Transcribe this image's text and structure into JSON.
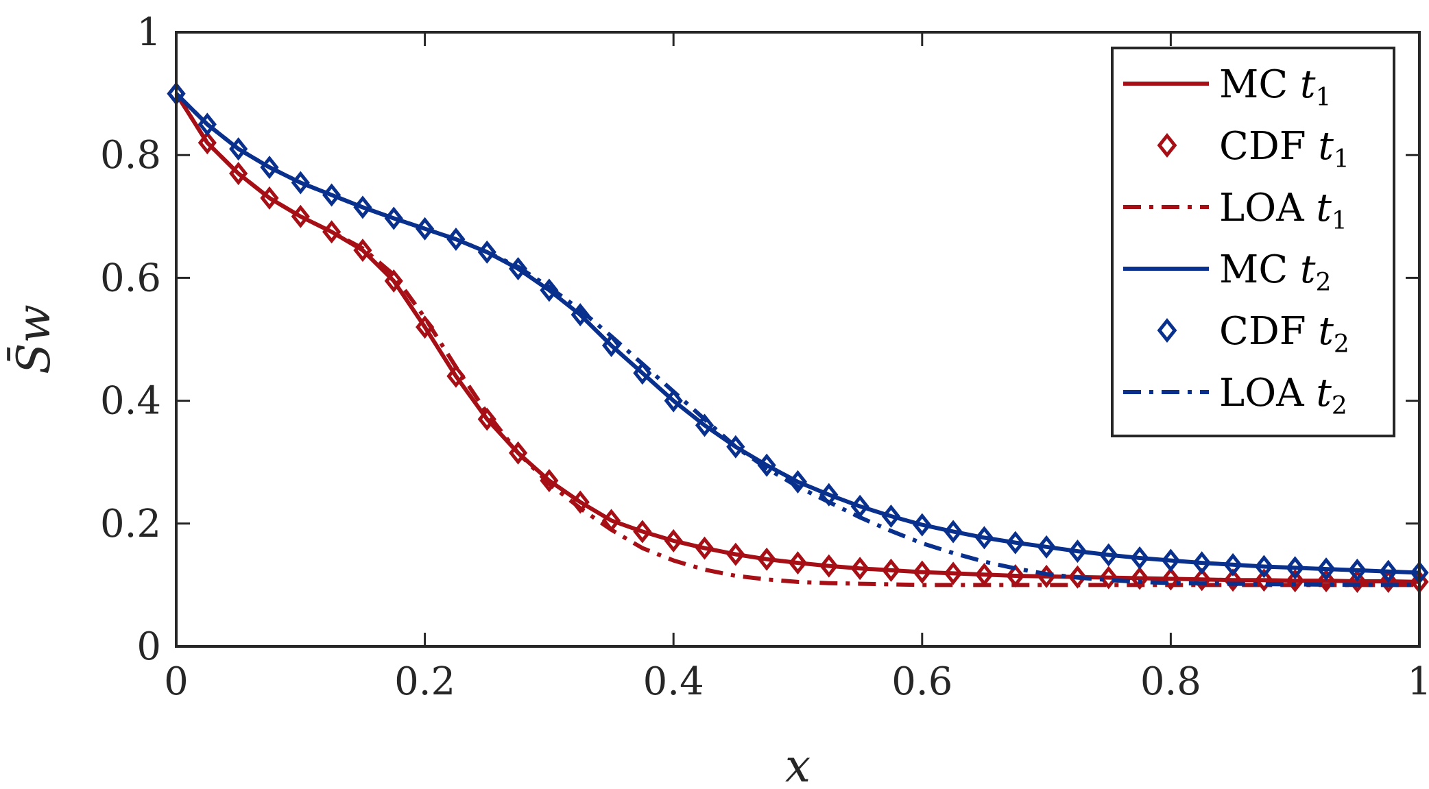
{
  "chart_data": {
    "type": "line",
    "title": "",
    "xlabel": "x",
    "ylabel": "S̄w",
    "xlim": [
      0,
      1
    ],
    "ylim": [
      0,
      1
    ],
    "xticks": [
      0,
      0.2,
      0.4,
      0.6,
      0.8,
      1
    ],
    "yticks": [
      0,
      0.2,
      0.4,
      0.6,
      0.8,
      1
    ],
    "xtick_labels": [
      "0",
      "0.2",
      "0.4",
      "0.6",
      "0.8",
      "1"
    ],
    "ytick_labels": [
      "0",
      "0.2",
      "0.4",
      "0.6",
      "0.8",
      "1"
    ],
    "grid": false,
    "legend_position": "top-right",
    "colors": {
      "red": "#a50f15",
      "blue": "#08308c",
      "axis": "#262626"
    },
    "series": [
      {
        "name": "MC t1",
        "label_main": "MC",
        "label_var": "t",
        "label_sub": "1",
        "color": "#a50f15",
        "style": "solid",
        "marker": "none",
        "x": [
          0,
          0.025,
          0.05,
          0.075,
          0.1,
          0.125,
          0.15,
          0.175,
          0.2,
          0.225,
          0.25,
          0.275,
          0.3,
          0.325,
          0.35,
          0.375,
          0.4,
          0.425,
          0.45,
          0.475,
          0.5,
          0.525,
          0.55,
          0.575,
          0.6,
          0.625,
          0.65,
          0.675,
          0.7,
          0.725,
          0.75,
          0.775,
          0.8,
          0.825,
          0.85,
          0.875,
          0.9,
          0.925,
          0.95,
          0.975,
          1
        ],
        "y": [
          0.9,
          0.82,
          0.77,
          0.73,
          0.7,
          0.675,
          0.645,
          0.595,
          0.52,
          0.44,
          0.37,
          0.315,
          0.27,
          0.235,
          0.205,
          0.187,
          0.172,
          0.16,
          0.15,
          0.142,
          0.136,
          0.131,
          0.127,
          0.124,
          0.121,
          0.119,
          0.117,
          0.115,
          0.114,
          0.113,
          0.112,
          0.111,
          0.11,
          0.109,
          0.108,
          0.108,
          0.107,
          0.107,
          0.106,
          0.106,
          0.105
        ]
      },
      {
        "name": "CDF t1",
        "label_main": "CDF",
        "label_var": "t",
        "label_sub": "1",
        "color": "#a50f15",
        "style": "none",
        "marker": "diamond",
        "x": [
          0,
          0.025,
          0.05,
          0.075,
          0.1,
          0.125,
          0.15,
          0.175,
          0.2,
          0.225,
          0.25,
          0.275,
          0.3,
          0.325,
          0.35,
          0.375,
          0.4,
          0.425,
          0.45,
          0.475,
          0.5,
          0.525,
          0.55,
          0.575,
          0.6,
          0.625,
          0.65,
          0.675,
          0.7,
          0.725,
          0.75,
          0.775,
          0.8,
          0.825,
          0.85,
          0.875,
          0.9,
          0.925,
          0.95,
          0.975,
          1
        ],
        "y": [
          0.9,
          0.82,
          0.77,
          0.73,
          0.7,
          0.675,
          0.645,
          0.595,
          0.52,
          0.44,
          0.37,
          0.315,
          0.27,
          0.235,
          0.205,
          0.187,
          0.172,
          0.16,
          0.15,
          0.142,
          0.136,
          0.131,
          0.127,
          0.124,
          0.121,
          0.119,
          0.117,
          0.115,
          0.114,
          0.113,
          0.112,
          0.111,
          0.11,
          0.109,
          0.108,
          0.108,
          0.107,
          0.107,
          0.106,
          0.106,
          0.105
        ]
      },
      {
        "name": "LOA t1",
        "label_main": "LOA",
        "label_var": "t",
        "label_sub": "1",
        "color": "#a50f15",
        "style": "dashdot",
        "marker": "none",
        "x": [
          0,
          0.025,
          0.05,
          0.075,
          0.1,
          0.125,
          0.15,
          0.175,
          0.2,
          0.225,
          0.25,
          0.275,
          0.3,
          0.325,
          0.35,
          0.375,
          0.4,
          0.425,
          0.45,
          0.475,
          0.5,
          0.525,
          0.55,
          0.575,
          0.6,
          0.625,
          0.65,
          0.675,
          0.7,
          0.75,
          0.8,
          0.85,
          0.9,
          0.95,
          1
        ],
        "y": [
          0.9,
          0.82,
          0.77,
          0.73,
          0.7,
          0.675,
          0.648,
          0.605,
          0.535,
          0.455,
          0.38,
          0.315,
          0.265,
          0.225,
          0.19,
          0.16,
          0.14,
          0.125,
          0.115,
          0.109,
          0.105,
          0.103,
          0.102,
          0.101,
          0.1,
          0.1,
          0.1,
          0.1,
          0.1,
          0.1,
          0.1,
          0.1,
          0.1,
          0.1,
          0.1
        ]
      },
      {
        "name": "MC t2",
        "label_main": "MC",
        "label_var": "t",
        "label_sub": "2",
        "color": "#08308c",
        "style": "solid",
        "marker": "none",
        "x": [
          0,
          0.025,
          0.05,
          0.075,
          0.1,
          0.125,
          0.15,
          0.175,
          0.2,
          0.225,
          0.25,
          0.275,
          0.3,
          0.325,
          0.35,
          0.375,
          0.4,
          0.425,
          0.45,
          0.475,
          0.5,
          0.525,
          0.55,
          0.575,
          0.6,
          0.625,
          0.65,
          0.675,
          0.7,
          0.725,
          0.75,
          0.775,
          0.8,
          0.825,
          0.85,
          0.875,
          0.9,
          0.925,
          0.95,
          0.975,
          1
        ],
        "y": [
          0.9,
          0.85,
          0.81,
          0.78,
          0.755,
          0.735,
          0.715,
          0.697,
          0.68,
          0.663,
          0.642,
          0.615,
          0.58,
          0.54,
          0.49,
          0.445,
          0.4,
          0.36,
          0.325,
          0.295,
          0.268,
          0.247,
          0.228,
          0.212,
          0.198,
          0.187,
          0.177,
          0.169,
          0.162,
          0.155,
          0.149,
          0.144,
          0.14,
          0.136,
          0.133,
          0.13,
          0.128,
          0.126,
          0.124,
          0.122,
          0.12
        ]
      },
      {
        "name": "CDF t2",
        "label_main": "CDF",
        "label_var": "t",
        "label_sub": "2",
        "color": "#08308c",
        "style": "none",
        "marker": "diamond",
        "x": [
          0,
          0.025,
          0.05,
          0.075,
          0.1,
          0.125,
          0.15,
          0.175,
          0.2,
          0.225,
          0.25,
          0.275,
          0.3,
          0.325,
          0.35,
          0.375,
          0.4,
          0.425,
          0.45,
          0.475,
          0.5,
          0.525,
          0.55,
          0.575,
          0.6,
          0.625,
          0.65,
          0.675,
          0.7,
          0.725,
          0.75,
          0.775,
          0.8,
          0.825,
          0.85,
          0.875,
          0.9,
          0.925,
          0.95,
          0.975,
          1
        ],
        "y": [
          0.9,
          0.85,
          0.81,
          0.78,
          0.755,
          0.735,
          0.715,
          0.697,
          0.68,
          0.663,
          0.642,
          0.615,
          0.58,
          0.54,
          0.49,
          0.445,
          0.4,
          0.36,
          0.325,
          0.295,
          0.268,
          0.247,
          0.228,
          0.212,
          0.198,
          0.187,
          0.177,
          0.169,
          0.162,
          0.155,
          0.149,
          0.144,
          0.14,
          0.136,
          0.133,
          0.13,
          0.128,
          0.126,
          0.124,
          0.122,
          0.12
        ]
      },
      {
        "name": "LOA t2",
        "label_main": "LOA",
        "label_var": "t",
        "label_sub": "2",
        "color": "#08308c",
        "style": "dashdot",
        "marker": "none",
        "x": [
          0,
          0.025,
          0.05,
          0.075,
          0.1,
          0.125,
          0.15,
          0.175,
          0.2,
          0.225,
          0.25,
          0.275,
          0.3,
          0.325,
          0.35,
          0.375,
          0.4,
          0.425,
          0.45,
          0.475,
          0.5,
          0.525,
          0.55,
          0.575,
          0.6,
          0.625,
          0.65,
          0.675,
          0.7,
          0.725,
          0.75,
          0.775,
          0.8,
          0.85,
          0.9,
          0.95,
          1
        ],
        "y": [
          0.9,
          0.85,
          0.81,
          0.78,
          0.755,
          0.735,
          0.715,
          0.697,
          0.68,
          0.663,
          0.642,
          0.618,
          0.585,
          0.548,
          0.505,
          0.46,
          0.415,
          0.37,
          0.325,
          0.29,
          0.26,
          0.235,
          0.21,
          0.188,
          0.168,
          0.152,
          0.138,
          0.127,
          0.118,
          0.112,
          0.108,
          0.105,
          0.103,
          0.102,
          0.101,
          0.1,
          0.1
        ]
      }
    ]
  }
}
